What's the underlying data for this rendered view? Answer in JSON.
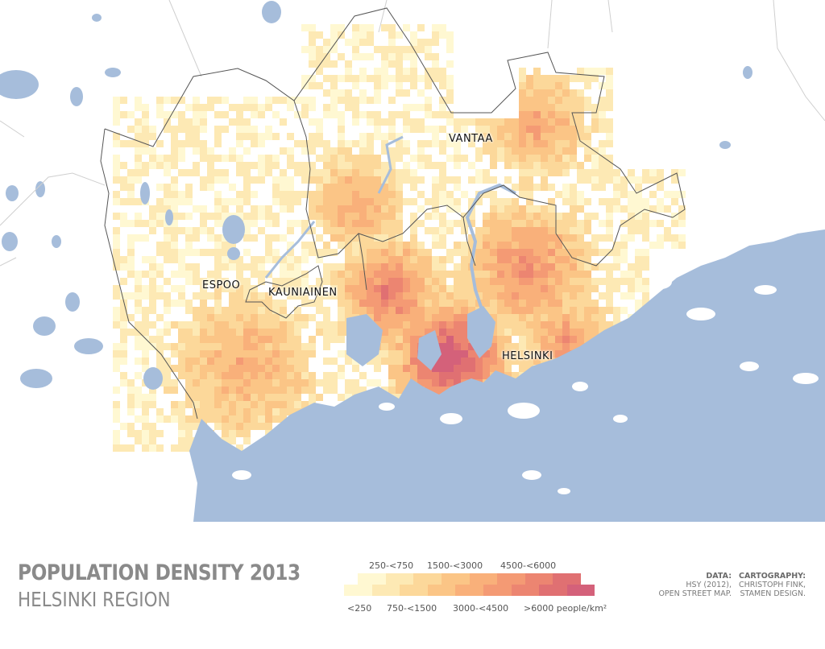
{
  "map": {
    "places": [
      {
        "name": "VANTAA"
      },
      {
        "name": "ESPOO"
      },
      {
        "name": "KAUNIAINEN"
      },
      {
        "name": "HELSINKI"
      }
    ],
    "colors": {
      "water": "#a6bddb",
      "land": "#ffffff",
      "road": "#c8c8c8",
      "boundary": "#555555"
    }
  },
  "title": {
    "main": "POPULATION DENSITY 2013",
    "sub": "HELSINKI REGION"
  },
  "legend": {
    "labels_top": [
      "250-<750",
      "1500-<3000",
      "4500-<6000"
    ],
    "labels_bottom": [
      "<250",
      "750-<1500",
      "3000-<4500",
      ">6000 people/km²"
    ],
    "colors": [
      "#fff8d2",
      "#fde9b4",
      "#fcd89a",
      "#fbc586",
      "#f9b07a",
      "#f49a74",
      "#ec8571",
      "#e07072",
      "#d4617a"
    ]
  },
  "credits": {
    "data_label": "DATA:",
    "data_lines": [
      "HSY (2012),",
      "OPEN STREET MAP."
    ],
    "carto_label": "CARTOGRAPHY:",
    "carto_lines": [
      "CHRISTOPH FINK,",
      "STAMEN DESIGN."
    ]
  }
}
